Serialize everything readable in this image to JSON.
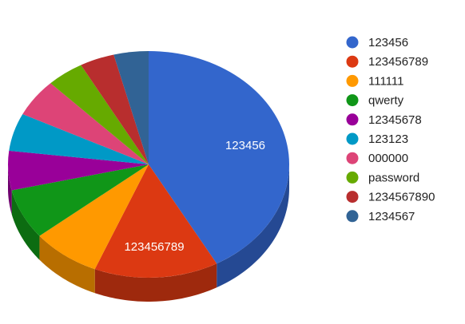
{
  "chart_data": {
    "type": "pie3d",
    "categories": [
      "123456",
      "123456789",
      "111111",
      "qwerty",
      "12345678",
      "123123",
      "000000",
      "password",
      "1234567890",
      "1234567"
    ],
    "values": [
      42,
      14.3,
      7.9,
      7.2,
      5.6,
      5.4,
      5.4,
      4.3,
      4,
      4
    ],
    "colors": [
      "#3366cc",
      "#dc3912",
      "#ff9900",
      "#109618",
      "#990099",
      "#0099c6",
      "#dd4477",
      "#66aa00",
      "#b82e2e",
      "#316395"
    ],
    "legend": "right"
  }
}
